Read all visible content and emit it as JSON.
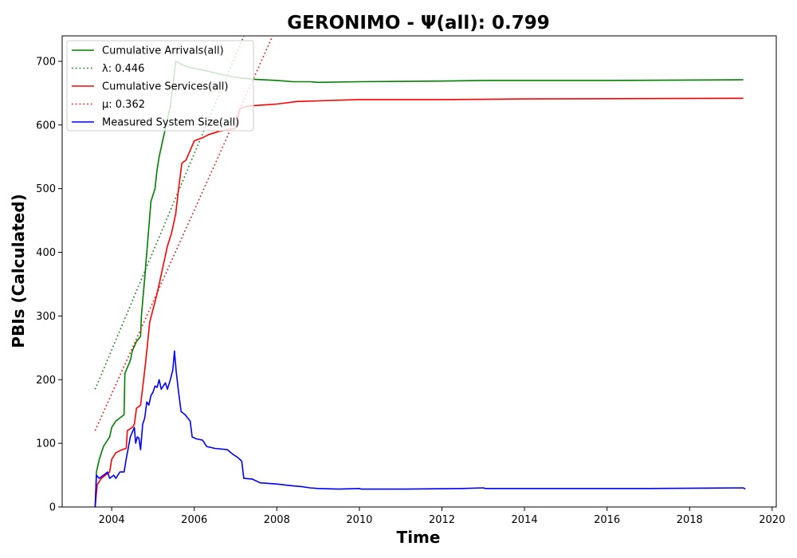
{
  "chart_data": {
    "type": "line",
    "title": "GERONIMO -  Ψ(all): 0.799",
    "xlabel": "Time",
    "ylabel": "PBIs (Calculated)",
    "xlim": [
      2002.8,
      2020.1
    ],
    "ylim": [
      0,
      740
    ],
    "x_ticks": [
      2004,
      2006,
      2008,
      2010,
      2012,
      2014,
      2016,
      2018,
      2020
    ],
    "y_ticks": [
      0,
      100,
      200,
      300,
      400,
      500,
      600,
      700
    ],
    "grid": false,
    "legend_position": "top-left",
    "series": [
      {
        "name": "Cumulative Arrivals(all)",
        "color": "#008000",
        "style": "solid",
        "points": [
          [
            2003.6,
            0
          ],
          [
            2003.63,
            55
          ],
          [
            2003.7,
            75
          ],
          [
            2003.8,
            95
          ],
          [
            2003.95,
            110
          ],
          [
            2004.0,
            125
          ],
          [
            2004.1,
            135
          ],
          [
            2004.2,
            140
          ],
          [
            2004.3,
            145
          ],
          [
            2004.32,
            210
          ],
          [
            2004.45,
            230
          ],
          [
            2004.5,
            245
          ],
          [
            2004.6,
            260
          ],
          [
            2004.7,
            268
          ],
          [
            2004.72,
            300
          ],
          [
            2004.8,
            360
          ],
          [
            2004.9,
            440
          ],
          [
            2004.95,
            480
          ],
          [
            2005.05,
            500
          ],
          [
            2005.1,
            530
          ],
          [
            2005.15,
            550
          ],
          [
            2005.25,
            580
          ],
          [
            2005.32,
            600
          ],
          [
            2005.42,
            630
          ],
          [
            2005.5,
            670
          ],
          [
            2005.55,
            700
          ],
          [
            2005.7,
            695
          ],
          [
            2005.9,
            690
          ],
          [
            2006.3,
            685
          ],
          [
            2006.6,
            680
          ],
          [
            2007.0,
            675
          ],
          [
            2007.4,
            672
          ],
          [
            2008.0,
            670
          ],
          [
            2008.4,
            668
          ],
          [
            2008.8,
            668
          ],
          [
            2009.0,
            667
          ],
          [
            2010.0,
            668
          ],
          [
            2012.0,
            669
          ],
          [
            2013.0,
            670
          ],
          [
            2016.0,
            670
          ],
          [
            2019.3,
            671
          ]
        ]
      },
      {
        "name": "λ: 0.446",
        "color": "#008000",
        "style": "dotted",
        "points": [
          [
            2003.6,
            185
          ],
          [
            2007.2,
            740
          ]
        ]
      },
      {
        "name": "Cumulative Services(all)",
        "color": "#ff0000",
        "style": "solid",
        "points": [
          [
            2003.6,
            0
          ],
          [
            2003.65,
            35
          ],
          [
            2003.75,
            45
          ],
          [
            2003.85,
            50
          ],
          [
            2003.95,
            55
          ],
          [
            2004.0,
            75
          ],
          [
            2004.1,
            85
          ],
          [
            2004.25,
            90
          ],
          [
            2004.35,
            92
          ],
          [
            2004.38,
            120
          ],
          [
            2004.5,
            125
          ],
          [
            2004.55,
            130
          ],
          [
            2004.6,
            155
          ],
          [
            2004.7,
            160
          ],
          [
            2004.8,
            215
          ],
          [
            2004.85,
            245
          ],
          [
            2004.92,
            290
          ],
          [
            2005.0,
            310
          ],
          [
            2005.08,
            330
          ],
          [
            2005.15,
            350
          ],
          [
            2005.25,
            380
          ],
          [
            2005.35,
            410
          ],
          [
            2005.45,
            430
          ],
          [
            2005.55,
            460
          ],
          [
            2005.62,
            500
          ],
          [
            2005.7,
            540
          ],
          [
            2005.8,
            545
          ],
          [
            2005.9,
            560
          ],
          [
            2006.0,
            575
          ],
          [
            2006.2,
            580
          ],
          [
            2006.35,
            585
          ],
          [
            2006.6,
            590
          ],
          [
            2007.0,
            595
          ],
          [
            2007.1,
            625
          ],
          [
            2007.3,
            630
          ],
          [
            2007.8,
            632
          ],
          [
            2008.0,
            633
          ],
          [
            2008.5,
            637
          ],
          [
            2009.0,
            638
          ],
          [
            2010.0,
            640
          ],
          [
            2012.0,
            640
          ],
          [
            2014.0,
            641
          ],
          [
            2019.3,
            642
          ]
        ]
      },
      {
        "name": "μ: 0.362",
        "color": "#ff0000",
        "style": "dotted",
        "points": [
          [
            2003.6,
            120
          ],
          [
            2007.9,
            740
          ]
        ]
      },
      {
        "name": "Measured System Size(all)",
        "color": "#0000ff",
        "style": "solid",
        "points": [
          [
            2003.6,
            0
          ],
          [
            2003.63,
            50
          ],
          [
            2003.7,
            45
          ],
          [
            2003.8,
            50
          ],
          [
            2003.9,
            55
          ],
          [
            2003.95,
            45
          ],
          [
            2004.05,
            50
          ],
          [
            2004.1,
            45
          ],
          [
            2004.2,
            55
          ],
          [
            2004.3,
            55
          ],
          [
            2004.35,
            75
          ],
          [
            2004.45,
            110
          ],
          [
            2004.55,
            125
          ],
          [
            2004.58,
            100
          ],
          [
            2004.62,
            110
          ],
          [
            2004.66,
            108
          ],
          [
            2004.7,
            90
          ],
          [
            2004.75,
            130
          ],
          [
            2004.8,
            140
          ],
          [
            2004.85,
            165
          ],
          [
            2004.9,
            160
          ],
          [
            2004.95,
            175
          ],
          [
            2005.0,
            180
          ],
          [
            2005.05,
            190
          ],
          [
            2005.1,
            188
          ],
          [
            2005.15,
            200
          ],
          [
            2005.2,
            185
          ],
          [
            2005.3,
            195
          ],
          [
            2005.35,
            185
          ],
          [
            2005.42,
            200
          ],
          [
            2005.48,
            215
          ],
          [
            2005.52,
            245
          ],
          [
            2005.56,
            215
          ],
          [
            2005.62,
            180
          ],
          [
            2005.68,
            150
          ],
          [
            2005.78,
            145
          ],
          [
            2005.9,
            135
          ],
          [
            2005.95,
            110
          ],
          [
            2006.05,
            107
          ],
          [
            2006.2,
            105
          ],
          [
            2006.3,
            95
          ],
          [
            2006.5,
            92
          ],
          [
            2006.8,
            90
          ],
          [
            2006.95,
            82
          ],
          [
            2007.05,
            78
          ],
          [
            2007.15,
            72
          ],
          [
            2007.2,
            45
          ],
          [
            2007.4,
            44
          ],
          [
            2007.6,
            38
          ],
          [
            2008.0,
            36
          ],
          [
            2008.4,
            33
          ],
          [
            2008.6,
            32
          ],
          [
            2008.8,
            30
          ],
          [
            2009.0,
            29
          ],
          [
            2009.5,
            28
          ],
          [
            2010.0,
            29
          ],
          [
            2010.05,
            28
          ],
          [
            2011.0,
            28
          ],
          [
            2012.5,
            29
          ],
          [
            2013.0,
            30
          ],
          [
            2013.05,
            29
          ],
          [
            2015.0,
            29
          ],
          [
            2017.0,
            29
          ],
          [
            2019.3,
            30
          ],
          [
            2019.35,
            28
          ]
        ]
      }
    ]
  }
}
